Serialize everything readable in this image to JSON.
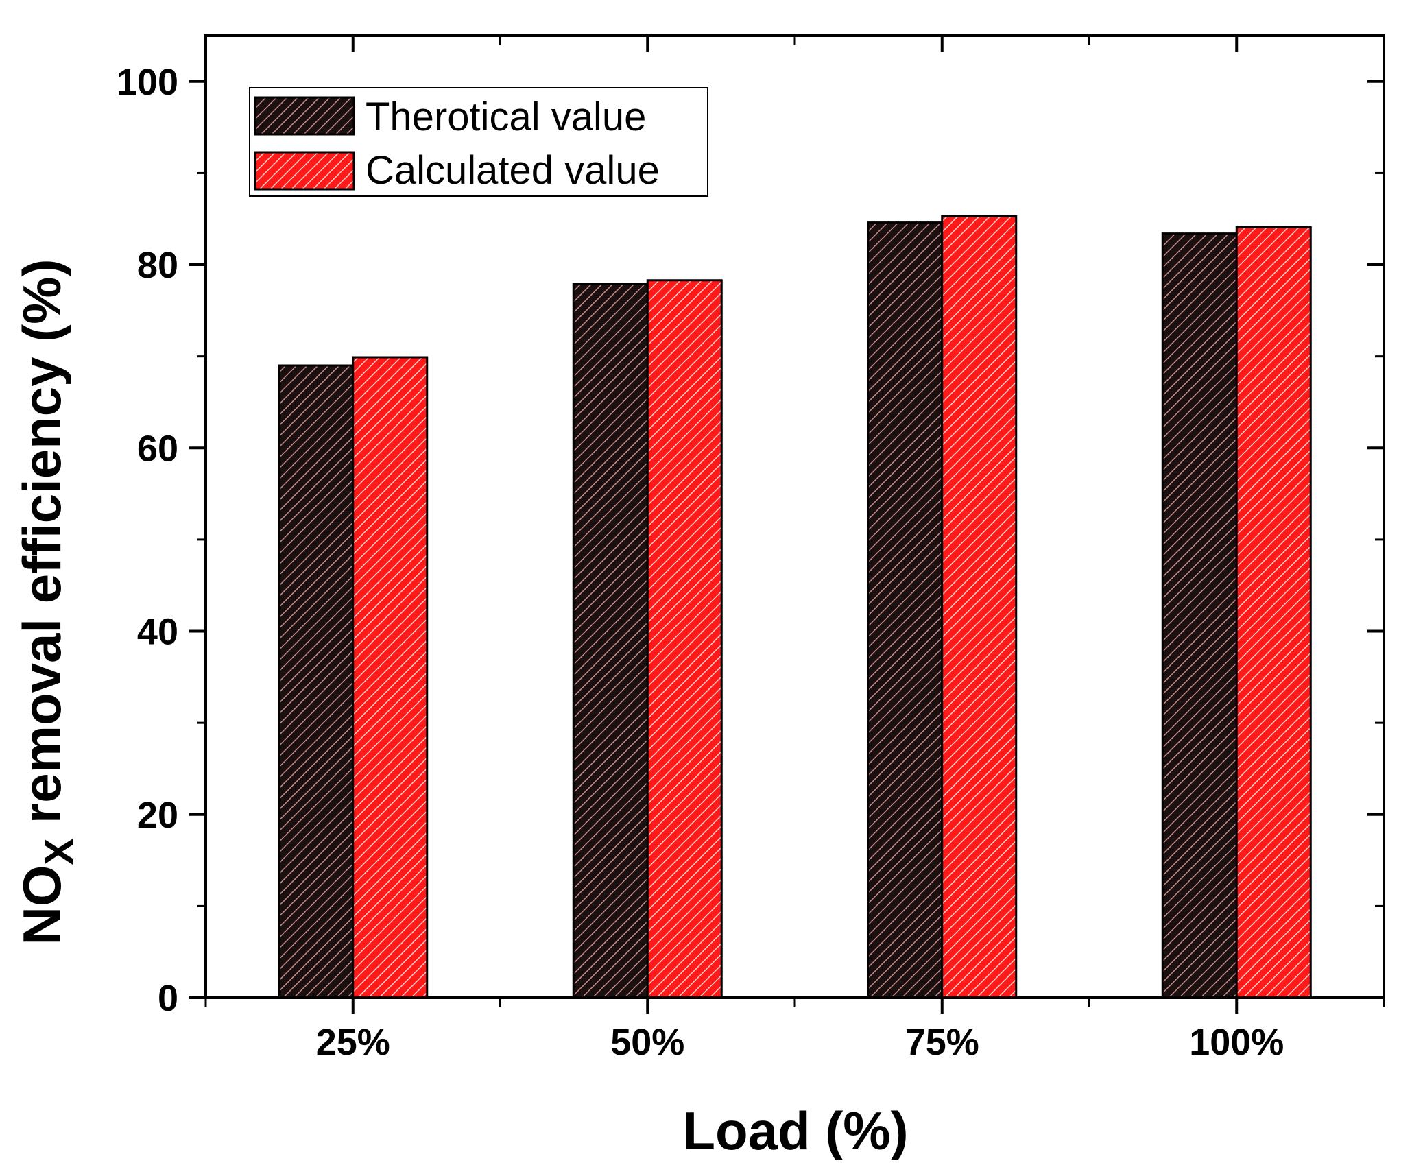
{
  "chart_data": {
    "type": "bar",
    "categories": [
      "25%",
      "50%",
      "75%",
      "100%"
    ],
    "series": [
      {
        "name": "Therotical value",
        "values": [
          69.0,
          77.9,
          84.6,
          83.4
        ],
        "color": "#1a1010",
        "hatch": "#c98a8a"
      },
      {
        "name": "Calculated value",
        "values": [
          69.9,
          78.3,
          85.3,
          84.1
        ],
        "color": "#ff1a1a",
        "hatch": "#ffd0d0"
      }
    ],
    "xlabel": "Load (%)",
    "ylabel_main": "NO",
    "ylabel_sub": "X",
    "ylabel_rest": " removal efficiency (%)",
    "ylim": [
      0,
      105
    ],
    "yticks": [
      0,
      20,
      40,
      60,
      80,
      100
    ],
    "yticks_minor": [
      10,
      30,
      50,
      70,
      90
    ],
    "legend_position": "top-left",
    "grid": false
  }
}
